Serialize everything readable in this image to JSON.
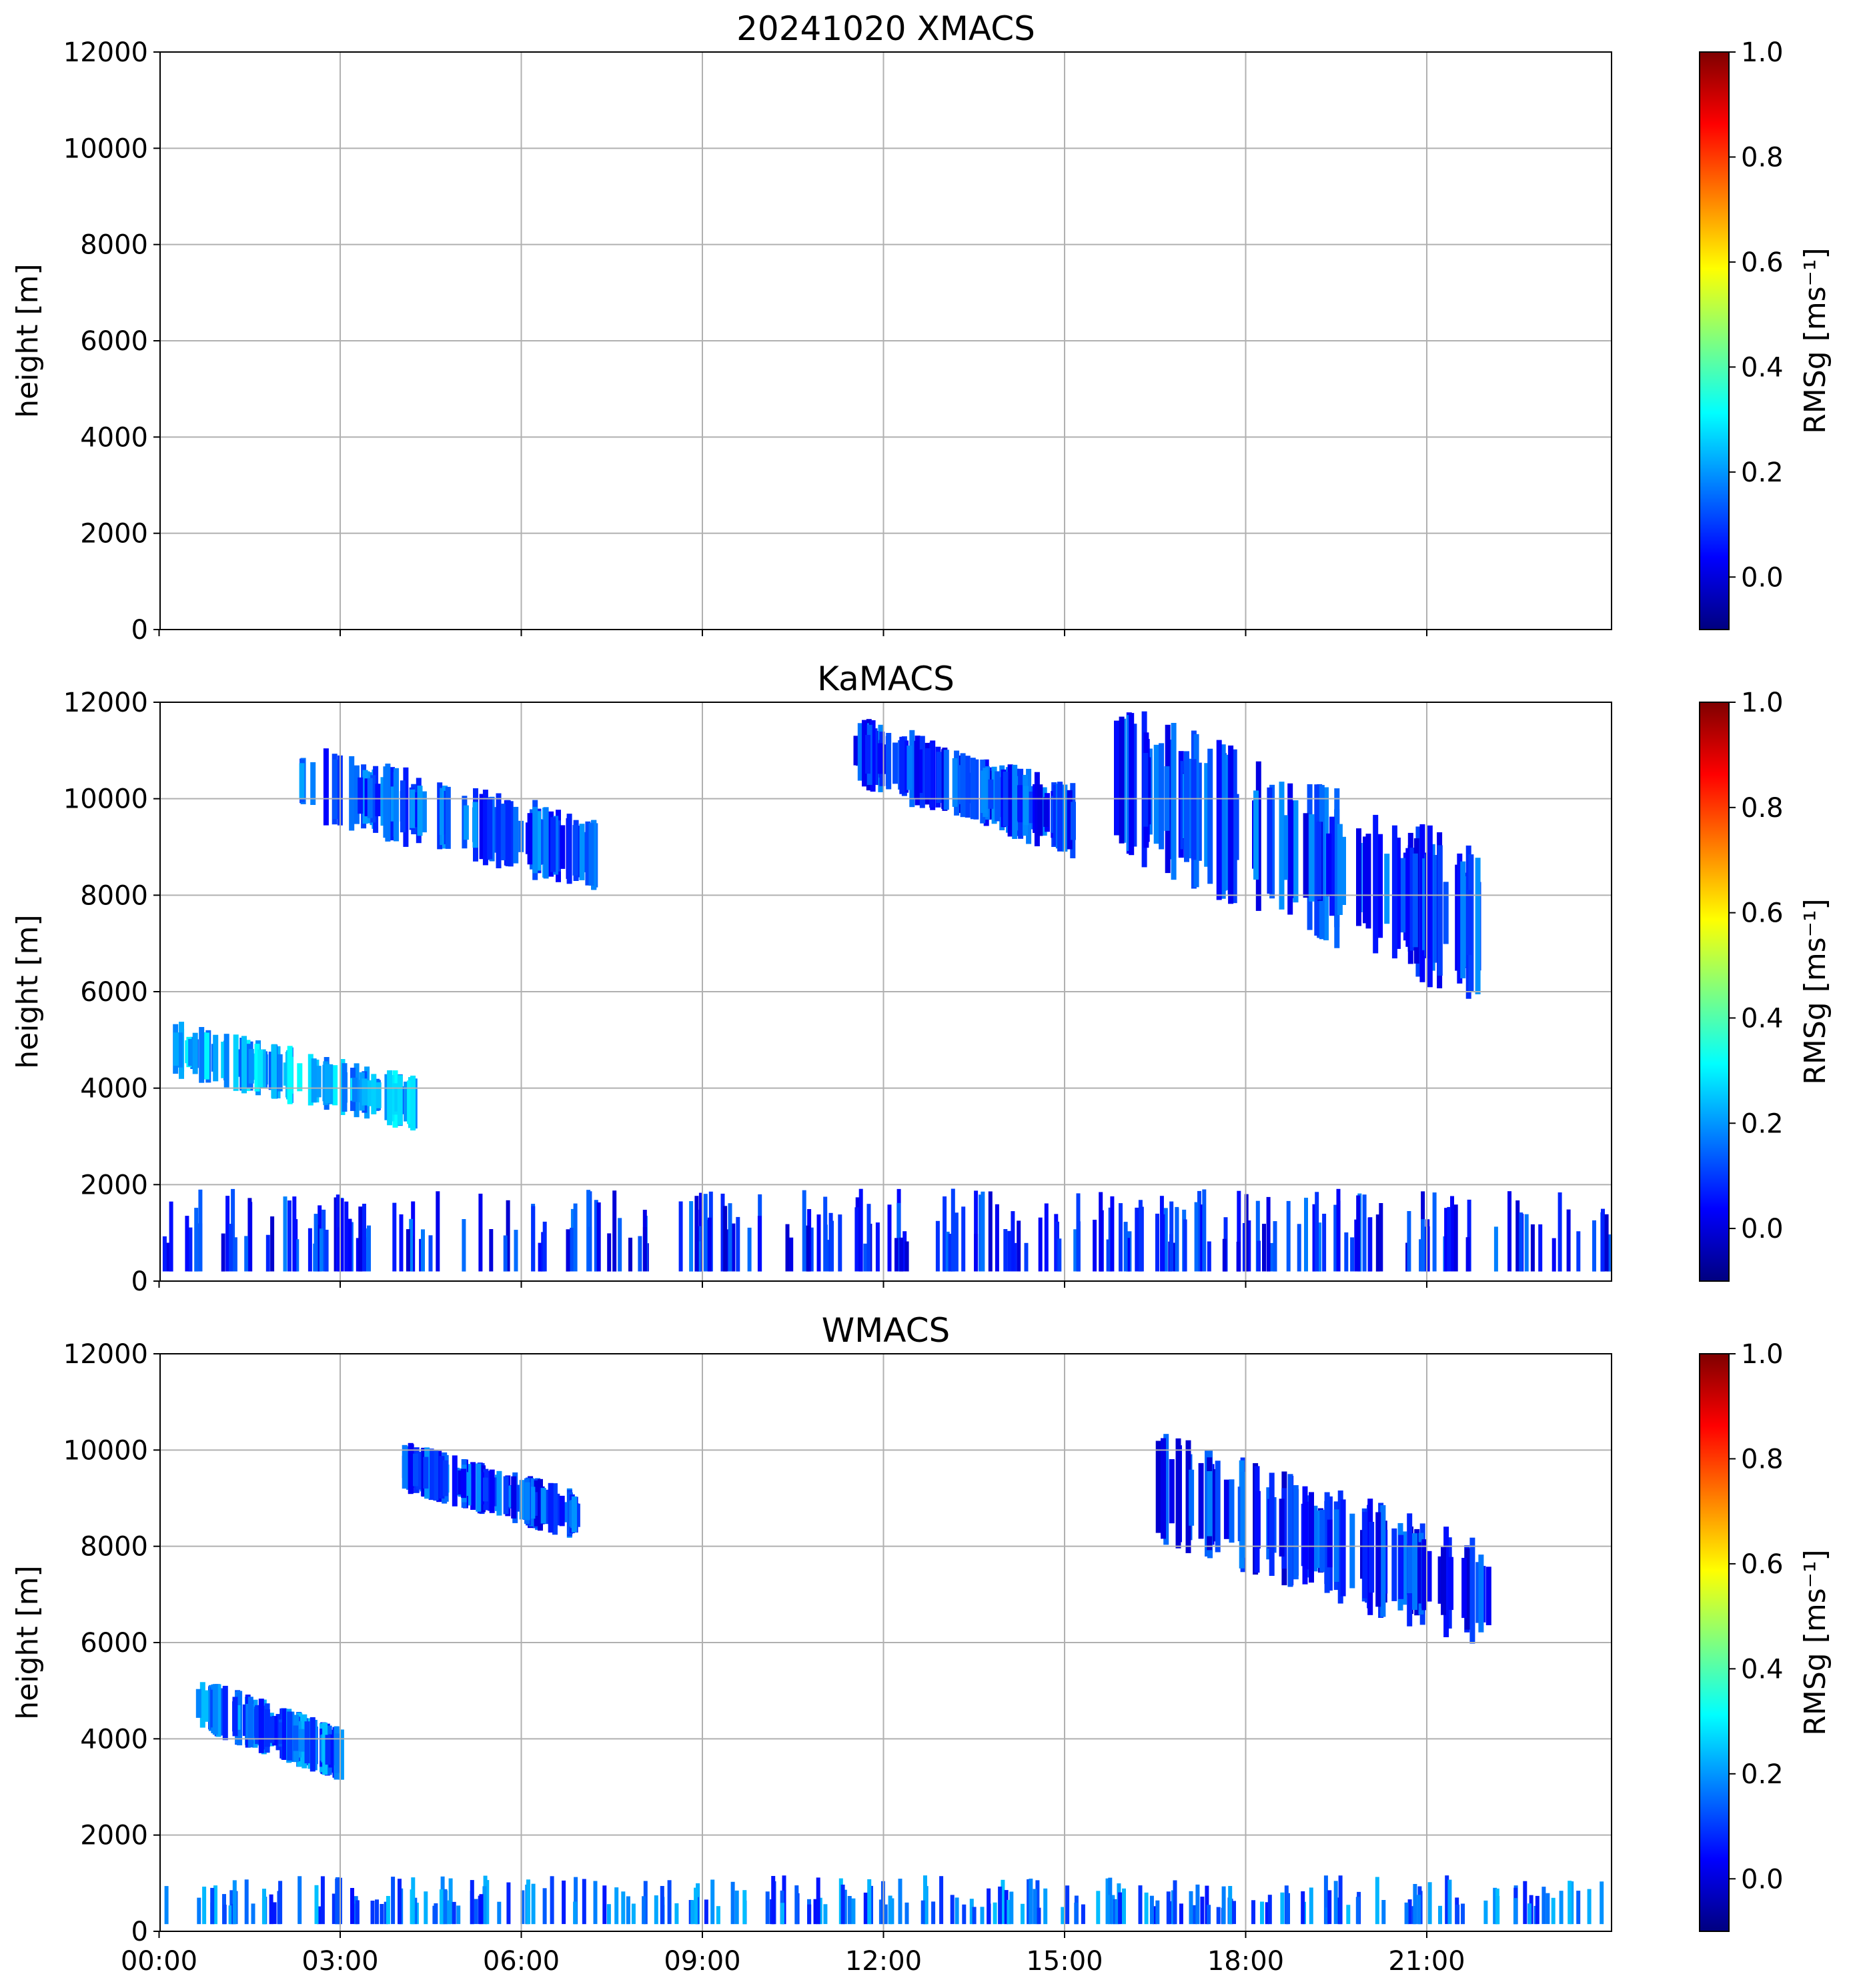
{
  "figure": {
    "panels": [
      {
        "id": "xmacs",
        "title": "20241020 XMACS"
      },
      {
        "id": "kamacs",
        "title": "KaMACS"
      },
      {
        "id": "wmacs",
        "title": "WMACS"
      }
    ],
    "colorbar_label": "RMSg [ms⁻¹]",
    "colorbar_ticks": [
      "0.0",
      "0.2",
      "0.4",
      "0.6",
      "0.8",
      "1.0"
    ],
    "colormap": [
      "#00007f",
      "#0000ff",
      "#007fff",
      "#00ffff",
      "#7fff7f",
      "#ffff00",
      "#ff7f00",
      "#ff0000",
      "#7f0000"
    ]
  },
  "chart_data": [
    {
      "type": "heatmap",
      "title": "20241020 XMACS",
      "xlabel": "",
      "ylabel": "height [m]",
      "ylim": [
        0,
        12000
      ],
      "xlim": [
        "00:00",
        "24:00"
      ],
      "x_ticks": [
        "00:00",
        "03:00",
        "06:00",
        "09:00",
        "12:00",
        "15:00",
        "18:00",
        "21:00"
      ],
      "y_ticks": [
        "0",
        "2000",
        "4000",
        "6000",
        "8000",
        "10000",
        "12000"
      ],
      "colorbar": {
        "label": "RMSg [ms⁻¹]",
        "range": [
          -0.1,
          1.0
        ],
        "ticks": [
          0.0,
          0.2,
          0.4,
          0.6,
          0.8,
          1.0
        ]
      },
      "grid": true,
      "features": []
    },
    {
      "type": "heatmap",
      "title": "KaMACS",
      "xlabel": "",
      "ylabel": "height [m]",
      "ylim": [
        0,
        12000
      ],
      "xlim": [
        "00:00",
        "24:00"
      ],
      "x_ticks": [
        "00:00",
        "03:00",
        "06:00",
        "09:00",
        "12:00",
        "15:00",
        "18:00",
        "21:00"
      ],
      "y_ticks": [
        "0",
        "2000",
        "4000",
        "6000",
        "8000",
        "10000",
        "12000"
      ],
      "colorbar": {
        "label": "RMSg [ms⁻¹]",
        "range": [
          -0.1,
          1.0
        ],
        "ticks": [
          0.0,
          0.2,
          0.4,
          0.6,
          0.8,
          1.0
        ]
      },
      "grid": true,
      "features": [
        {
          "name": "high cirrus 02-07h",
          "time_start": 2.3,
          "time_end": 7.2,
          "height_bottom": 8300,
          "height_top": 10900,
          "value": 0.12
        },
        {
          "name": "mid-level cloud 00-04h",
          "time_start": 0.2,
          "time_end": 4.2,
          "height_bottom": 3300,
          "height_top": 5200,
          "value": 0.22
        },
        {
          "name": "cirrus streaks 11-15h",
          "time_start": 11.5,
          "time_end": 15.2,
          "height_bottom": 9000,
          "height_top": 11500,
          "value": 0.1
        },
        {
          "name": "descending cirrus 16-22h",
          "time_start": 15.8,
          "time_end": 22.0,
          "height_bottom": 6200,
          "height_top": 11500,
          "value": 0.1
        },
        {
          "name": "boundary layer",
          "time_start": 0.0,
          "time_end": 24.0,
          "height_bottom": 200,
          "height_top": 2500,
          "value": 0.08
        }
      ]
    },
    {
      "type": "heatmap",
      "title": "WMACS",
      "xlabel": "",
      "ylabel": "height [m]",
      "ylim": [
        0,
        12000
      ],
      "xlim": [
        "00:00",
        "24:00"
      ],
      "x_ticks": [
        "00:00",
        "03:00",
        "06:00",
        "09:00",
        "12:00",
        "15:00",
        "18:00",
        "21:00"
      ],
      "y_ticks": [
        "0",
        "2000",
        "4000",
        "6000",
        "8000",
        "10000",
        "12000"
      ],
      "colorbar": {
        "label": "RMSg [ms⁻¹]",
        "range": [
          -0.1,
          1.0
        ],
        "ticks": [
          0.0,
          0.2,
          0.4,
          0.6,
          0.8,
          1.0
        ]
      },
      "grid": true,
      "features": [
        {
          "name": "high cirrus 04-07h",
          "time_start": 4.0,
          "time_end": 6.9,
          "height_bottom": 8300,
          "height_top": 10000,
          "value": 0.1
        },
        {
          "name": "mid-level cloud 00-03h",
          "time_start": 0.6,
          "time_end": 3.0,
          "height_bottom": 3300,
          "height_top": 5100,
          "value": 0.15
        },
        {
          "name": "descending cirrus 16-22h",
          "time_start": 16.5,
          "time_end": 22.0,
          "height_bottom": 6200,
          "height_top": 10000,
          "value": 0.08
        },
        {
          "name": "boundary layer",
          "time_start": 0.0,
          "time_end": 24.0,
          "height_bottom": 150,
          "height_top": 1500,
          "value": 0.15
        }
      ]
    }
  ]
}
